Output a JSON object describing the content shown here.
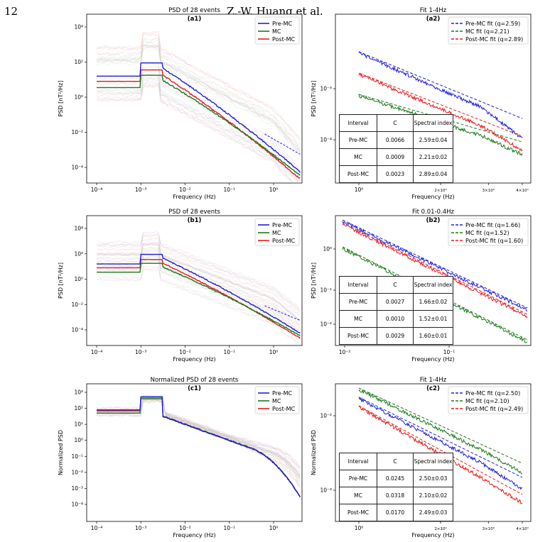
{
  "header": {
    "page_number": "12",
    "authors": "Z.-W. Huang et al."
  },
  "colors": {
    "pre": "#1f1fd6",
    "mc": "#1b7a1b",
    "post": "#e81b1b"
  },
  "panels": [
    {
      "id": "a1",
      "kind": "psd",
      "title": "PSD of 28 events",
      "tag": "(a1)",
      "ylabel": "PSD [nT²/Hz]",
      "xlabel": "Frequency (Hz)",
      "legend": [
        "Pre-MC",
        "MC",
        "Post-MC"
      ],
      "xtick_labels": [
        "10⁻⁴",
        "10⁻³",
        "10⁻²",
        "10⁻¹",
        "10⁰"
      ],
      "ytick_labels": [
        "10⁴",
        "10²",
        "10⁰",
        "10⁻²",
        "10⁻⁴"
      ]
    },
    {
      "id": "a2",
      "kind": "fit",
      "title": "Fit 1-4Hz",
      "tag": "(a2)",
      "ylabel": "PSD [nT²/Hz]",
      "xlabel": "Frequency (Hz)",
      "legend": [
        "Pre-MC fit (q=2.59)",
        "MC fit (q=2.21)",
        "Post-MC fit (q=2.89)"
      ],
      "xtick_labels": [
        "10⁰",
        "2×10⁰",
        "3×10⁰",
        "4×10⁰"
      ],
      "ytick_labels": [
        "10⁻³",
        "10⁻⁴"
      ],
      "table": {
        "header": [
          "Interval",
          "C",
          "Spectral index"
        ],
        "rows": [
          [
            "Pre-MC",
            "0.0066",
            "2.59±0.04"
          ],
          [
            "MC",
            "0.0009",
            "2.21±0.02"
          ],
          [
            "Post-MC",
            "0.0023",
            "2.89±0.04"
          ]
        ]
      }
    },
    {
      "id": "b1",
      "kind": "psd",
      "title": "PSD of 28 events",
      "tag": "(b1)",
      "ylabel": "PSD [nT²/Hz]",
      "xlabel": "Frequency (Hz)",
      "legend": [
        "Pre-MC",
        "MC",
        "Post-MC"
      ],
      "xtick_labels": [
        "10⁻⁴",
        "10⁻³",
        "10⁻²",
        "10⁻¹",
        "10⁰"
      ],
      "ytick_labels": [
        "10⁴",
        "10²",
        "10⁰",
        "10⁻²",
        "10⁻⁴"
      ]
    },
    {
      "id": "b2",
      "kind": "fit",
      "title": "Fit 0.01-0.4Hz",
      "tag": "(b2)",
      "ylabel": "PSD [nT²/Hz]",
      "xlabel": "Frequency (Hz)",
      "legend": [
        "Pre-MC fit (q=1.66)",
        "MC fit (q=1.52)",
        "Post-MC fit (q=1.60)"
      ],
      "xtick_labels": [
        "10⁻²",
        "10⁻¹"
      ],
      "ytick_labels": [
        "10⁰",
        "10⁻¹",
        "10⁻²"
      ],
      "table": {
        "header": [
          "Interval",
          "C",
          "Spectral index"
        ],
        "rows": [
          [
            "Pre-MC",
            "0.0027",
            "1.66±0.02"
          ],
          [
            "MC",
            "0.0010",
            "1.52±0.01"
          ],
          [
            "Post-MC",
            "0.0029",
            "1.60±0.01"
          ]
        ]
      }
    },
    {
      "id": "c1",
      "kind": "psd",
      "title": "Normalized PSD of 28 events",
      "tag": "(c1)",
      "ylabel": "Normalized PSD",
      "xlabel": "Frequency (Hz)",
      "legend": [
        "Pre-MC",
        "MC",
        "Post-MC"
      ],
      "xtick_labels": [
        "10⁻⁴",
        "10⁻³",
        "10⁻²",
        "10⁻¹",
        "10⁰"
      ],
      "ytick_labels": [
        "10³",
        "10²",
        "10¹",
        "10⁰",
        "10⁻¹",
        "10⁻²",
        "10⁻³",
        "10⁻⁴"
      ]
    },
    {
      "id": "c2",
      "kind": "fit",
      "title": "Fit 1-4Hz",
      "tag": "(c2)",
      "ylabel": "Normalized PSD",
      "xlabel": "Frequency (Hz)",
      "legend": [
        "Pre-MC fit (q=2.50)",
        "MC fit (q=2.10)",
        "Post-MC fit (q=2.49)"
      ],
      "xtick_labels": [
        "10⁰",
        "2×10⁰",
        "3×10⁰",
        "4×10⁰"
      ],
      "ytick_labels": [
        "10⁻²",
        "10⁻³"
      ],
      "table": {
        "header": [
          "Interval",
          "C",
          "Spectral index"
        ],
        "rows": [
          [
            "Pre-MC",
            "0.0245",
            "2.50±0.03"
          ],
          [
            "MC",
            "0.0318",
            "2.10±0.02"
          ],
          [
            "Post-MC",
            "0.0170",
            "2.49±0.03"
          ]
        ]
      }
    }
  ]
}
